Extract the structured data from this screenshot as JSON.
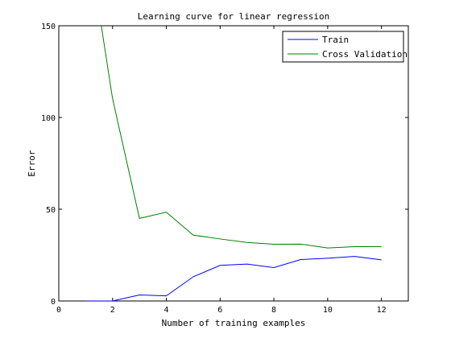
{
  "chart_data": {
    "type": "line",
    "title": "Learning curve for linear regression",
    "xlabel": "Number of training examples",
    "ylabel": "Error",
    "xlim": [
      0,
      13
    ],
    "ylim": [
      0,
      150
    ],
    "xticks": [
      0,
      2,
      4,
      6,
      8,
      10,
      12
    ],
    "yticks": [
      0,
      50,
      100,
      150
    ],
    "grid": false,
    "legend_location": "top-right",
    "series": [
      {
        "name": "Train",
        "color": "#0000ff",
        "x": [
          1,
          2,
          3,
          4,
          5,
          6,
          7,
          8,
          9,
          10,
          11,
          12
        ],
        "values": [
          0,
          0,
          3.3,
          2.8,
          13.2,
          19.4,
          20.1,
          18.2,
          22.6,
          23.3,
          24.3,
          22.4
        ]
      },
      {
        "name": "Cross Validation",
        "color": "#007f00",
        "x": [
          1,
          2,
          3,
          4,
          5,
          6,
          7,
          8,
          9,
          10,
          11,
          12
        ],
        "values": [
          205.1,
          110.3,
          45.0,
          48.4,
          35.9,
          33.8,
          31.9,
          30.9,
          31.0,
          28.9,
          29.6,
          29.6
        ]
      }
    ]
  }
}
